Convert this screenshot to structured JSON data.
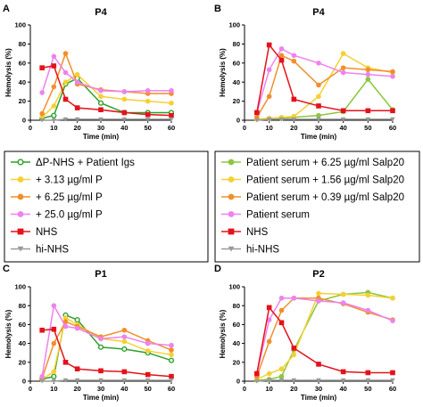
{
  "panel_letters": {
    "A": "A",
    "B": "B",
    "C": "C",
    "D": "D"
  },
  "chart_data": [
    {
      "type": "line",
      "panel": "A",
      "title": "P4",
      "xlabel": "Time (min)",
      "ylabel": "Hemolysis (%)",
      "xlim": [
        0,
        60
      ],
      "ylim": [
        0,
        100
      ],
      "xticks": [
        0,
        10,
        20,
        30,
        40,
        50,
        60
      ],
      "yticks": [
        0,
        20,
        40,
        60,
        80,
        100
      ],
      "series": [
        {
          "name": "ΔP-NHS + Patient Igs",
          "color": "#2ca02c",
          "marker": "circle-open",
          "x": [
            5,
            10,
            15,
            20,
            30,
            40,
            50,
            60
          ],
          "y": [
            2,
            5,
            38,
            44,
            18,
            8,
            8,
            8
          ]
        },
        {
          "name": "+ 3.13 µg/ml P",
          "color": "#f5d033",
          "marker": "circle",
          "x": [
            5,
            10,
            15,
            20,
            30,
            40,
            50,
            60
          ],
          "y": [
            3,
            15,
            40,
            48,
            25,
            22,
            20,
            18
          ]
        },
        {
          "name": "+ 6.25 µg/ml P",
          "color": "#f28e2b",
          "marker": "circle",
          "x": [
            5,
            10,
            15,
            20,
            30,
            40,
            50,
            60
          ],
          "y": [
            7,
            35,
            70,
            38,
            32,
            30,
            28,
            28
          ]
        },
        {
          "name": "+ 25.0 µg/ml P",
          "color": "#ee82ee",
          "marker": "circle",
          "x": [
            5,
            10,
            15,
            20,
            30,
            40,
            50,
            60
          ],
          "y": [
            29,
            67,
            50,
            40,
            31,
            30,
            31,
            31
          ]
        },
        {
          "name": "NHS",
          "color": "#e3121b",
          "marker": "square",
          "x": [
            5,
            10,
            15,
            20,
            30,
            40,
            50,
            60
          ],
          "y": [
            55,
            57,
            22,
            13,
            11,
            8,
            6,
            5
          ]
        },
        {
          "name": "hi-NHS",
          "color": "#999999",
          "marker": "triangle-down",
          "x": [
            5,
            10,
            15,
            20,
            30,
            40,
            50,
            60
          ],
          "y": [
            0,
            0,
            1,
            1,
            1,
            1,
            1,
            1
          ]
        }
      ]
    },
    {
      "type": "line",
      "panel": "B",
      "title": "P4",
      "xlabel": "Time (min)",
      "ylabel": "Hemolysis (%)",
      "xlim": [
        0,
        60
      ],
      "ylim": [
        0,
        100
      ],
      "xticks": [
        0,
        10,
        20,
        30,
        40,
        50,
        60
      ],
      "yticks": [
        0,
        20,
        40,
        60,
        80,
        100
      ],
      "series": [
        {
          "name": "Patient serum + 6.25 µg/ml Salp20",
          "color": "#8dc63f",
          "marker": "circle",
          "x": [
            5,
            10,
            15,
            20,
            30,
            40,
            50,
            60
          ],
          "y": [
            1,
            2,
            2,
            3,
            5,
            9,
            43,
            11
          ]
        },
        {
          "name": "Patient serum + 1.56 µg/ml Salp20",
          "color": "#f5d033",
          "marker": "circle",
          "x": [
            5,
            10,
            15,
            20,
            30,
            40,
            50,
            60
          ],
          "y": [
            1,
            2,
            3,
            4,
            25,
            70,
            55,
            50
          ]
        },
        {
          "name": "Patient serum + 0.39 µg/ml Salp20",
          "color": "#f28e2b",
          "marker": "circle",
          "x": [
            5,
            10,
            15,
            20,
            30,
            40,
            50,
            60
          ],
          "y": [
            3,
            25,
            68,
            62,
            37,
            55,
            53,
            51
          ]
        },
        {
          "name": "Patient serum",
          "color": "#ee82ee",
          "marker": "circle",
          "x": [
            5,
            10,
            15,
            20,
            30,
            40,
            50,
            60
          ],
          "y": [
            8,
            53,
            75,
            68,
            60,
            50,
            48,
            46
          ]
        },
        {
          "name": "NHS",
          "color": "#e3121b",
          "marker": "square",
          "x": [
            5,
            10,
            15,
            20,
            30,
            40,
            50,
            60
          ],
          "y": [
            8,
            79,
            63,
            22,
            15,
            10,
            10,
            10
          ]
        },
        {
          "name": "hi-NHS",
          "color": "#999999",
          "marker": "triangle-down",
          "x": [
            5,
            10,
            15,
            20,
            30,
            40,
            50,
            60
          ],
          "y": [
            0,
            1,
            1,
            1,
            1,
            1,
            1,
            1
          ]
        }
      ]
    },
    {
      "type": "line",
      "panel": "C",
      "title": "P1",
      "xlabel": "Time (min)",
      "ylabel": "Hemolysis (%)",
      "xlim": [
        0,
        60
      ],
      "ylim": [
        0,
        100
      ],
      "xticks": [
        0,
        10,
        20,
        30,
        40,
        50,
        60
      ],
      "yticks": [
        0,
        20,
        40,
        60,
        80,
        100
      ],
      "series": [
        {
          "name": "ΔP-NHS + Patient Igs",
          "color": "#2ca02c",
          "marker": "circle-open",
          "x": [
            5,
            10,
            15,
            20,
            30,
            40,
            50,
            60
          ],
          "y": [
            2,
            5,
            70,
            65,
            36,
            34,
            30,
            22
          ]
        },
        {
          "name": "+ 3.13 µg/ml P",
          "color": "#f5d033",
          "marker": "circle",
          "x": [
            5,
            10,
            15,
            20,
            30,
            40,
            50,
            60
          ],
          "y": [
            2,
            10,
            67,
            60,
            45,
            42,
            32,
            28
          ]
        },
        {
          "name": "+ 6.25 µg/ml P",
          "color": "#f28e2b",
          "marker": "circle",
          "x": [
            5,
            10,
            15,
            20,
            30,
            40,
            50,
            60
          ],
          "y": [
            3,
            40,
            63,
            58,
            47,
            54,
            43,
            33
          ]
        },
        {
          "name": "+ 25.0 µg/ml P",
          "color": "#ee82ee",
          "marker": "circle",
          "x": [
            5,
            10,
            15,
            20,
            30,
            40,
            50,
            60
          ],
          "y": [
            5,
            80,
            58,
            56,
            45,
            47,
            40,
            38
          ]
        },
        {
          "name": "NHS",
          "color": "#e3121b",
          "marker": "square",
          "x": [
            5,
            10,
            15,
            20,
            30,
            40,
            50,
            60
          ],
          "y": [
            54,
            55,
            20,
            13,
            11,
            10,
            7,
            5
          ]
        },
        {
          "name": "hi-NHS",
          "color": "#999999",
          "marker": "triangle-down",
          "x": [
            5,
            10,
            15,
            20,
            30,
            40,
            50,
            60
          ],
          "y": [
            0,
            0,
            1,
            1,
            1,
            1,
            1,
            1
          ]
        }
      ]
    },
    {
      "type": "line",
      "panel": "D",
      "title": "P2",
      "xlabel": "Time (min)",
      "ylabel": "Hemolysis (%)",
      "xlim": [
        0,
        60
      ],
      "ylim": [
        0,
        100
      ],
      "xticks": [
        0,
        10,
        20,
        30,
        40,
        50,
        60
      ],
      "yticks": [
        0,
        20,
        40,
        60,
        80,
        100
      ],
      "series": [
        {
          "name": "Patient serum + 6.25 µg/ml Salp20",
          "color": "#8dc63f",
          "marker": "circle",
          "x": [
            5,
            10,
            15,
            20,
            30,
            40,
            50,
            60
          ],
          "y": [
            1,
            2,
            5,
            33,
            85,
            92,
            94,
            88
          ]
        },
        {
          "name": "Patient serum + 1.56 µg/ml Salp20",
          "color": "#f5d033",
          "marker": "circle",
          "x": [
            5,
            10,
            15,
            20,
            30,
            40,
            50,
            60
          ],
          "y": [
            2,
            8,
            13,
            28,
            93,
            92,
            91,
            88
          ]
        },
        {
          "name": "Patient serum + 0.39 µg/ml Salp20",
          "color": "#f28e2b",
          "marker": "circle",
          "x": [
            5,
            10,
            15,
            20,
            30,
            40,
            50,
            60
          ],
          "y": [
            5,
            42,
            75,
            88,
            88,
            82,
            73,
            65
          ]
        },
        {
          "name": "Patient serum",
          "color": "#ee82ee",
          "marker": "circle",
          "x": [
            5,
            10,
            15,
            20,
            30,
            40,
            50,
            60
          ],
          "y": [
            8,
            65,
            88,
            88,
            85,
            83,
            75,
            64
          ]
        },
        {
          "name": "NHS",
          "color": "#e3121b",
          "marker": "square",
          "x": [
            5,
            10,
            15,
            20,
            30,
            40,
            50,
            60
          ],
          "y": [
            8,
            78,
            62,
            35,
            18,
            10,
            9,
            9
          ]
        },
        {
          "name": "hi-NHS",
          "color": "#999999",
          "marker": "triangle-down",
          "x": [
            5,
            10,
            15,
            20,
            30,
            40,
            50,
            60
          ],
          "y": [
            0,
            1,
            1,
            1,
            1,
            1,
            1,
            1
          ]
        }
      ]
    }
  ],
  "legends": [
    {
      "panel": "A",
      "entries": [
        {
          "label": "ΔP-NHS + Patient Igs",
          "color": "#2ca02c",
          "marker": "circle-open"
        },
        {
          "label": "+ 3.13 µg/ml P",
          "color": "#f5d033",
          "marker": "circle"
        },
        {
          "label": "+ 6.25 µg/ml P",
          "color": "#f28e2b",
          "marker": "circle"
        },
        {
          "label": "+ 25.0 µg/ml P",
          "color": "#ee82ee",
          "marker": "circle"
        },
        {
          "label": "NHS",
          "color": "#e3121b",
          "marker": "square"
        },
        {
          "label": "hi-NHS",
          "color": "#999999",
          "marker": "triangle-down"
        }
      ]
    },
    {
      "panel": "B",
      "entries": [
        {
          "label": "Patient serum + 6.25 µg/ml Salp20",
          "color": "#8dc63f",
          "marker": "circle"
        },
        {
          "label": "Patient serum + 1.56 µg/ml Salp20",
          "color": "#f5d033",
          "marker": "circle"
        },
        {
          "label": "Patient serum + 0.39 µg/ml Salp20",
          "color": "#f28e2b",
          "marker": "circle"
        },
        {
          "label": "Patient serum",
          "color": "#ee82ee",
          "marker": "circle"
        },
        {
          "label": "NHS",
          "color": "#e3121b",
          "marker": "square"
        },
        {
          "label": "hi-NHS",
          "color": "#999999",
          "marker": "triangle-down"
        }
      ]
    }
  ]
}
